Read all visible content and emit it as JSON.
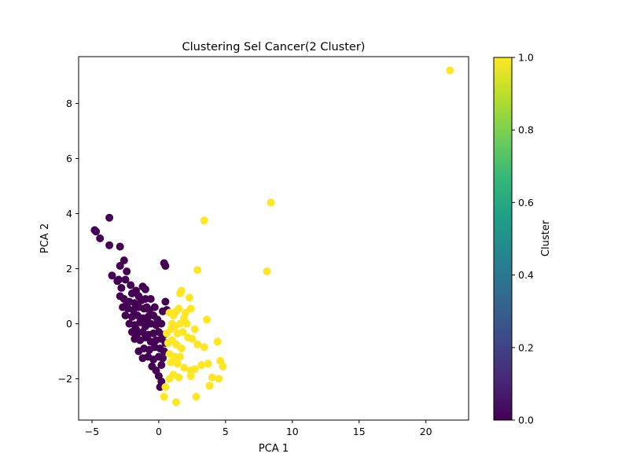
{
  "chart_data": {
    "type": "scatter",
    "title": "Clustering Sel Cancer(2 Cluster)",
    "xlabel": "PCA 1",
    "ylabel": "PCA 2",
    "xlim": [
      -6.0,
      23.2
    ],
    "ylim": [
      -3.5,
      9.7
    ],
    "xticks": [
      -5,
      0,
      5,
      10,
      15,
      20
    ],
    "yticks": [
      -2,
      0,
      2,
      4,
      6,
      8
    ],
    "grid": false,
    "colormap": "viridis",
    "colorbar": {
      "label": "Cluster",
      "range": [
        0.0,
        1.0
      ],
      "ticks": [
        "0.0",
        "0.2",
        "0.4",
        "0.6",
        "0.8",
        "1.0"
      ],
      "tick_values": [
        0.0,
        0.2,
        0.4,
        0.6,
        0.8,
        1.0
      ]
    },
    "cluster_colors": {
      "0": "#440154",
      "1": "#fde725"
    },
    "colorbar_stops": [
      "#440154",
      "#482878",
      "#3e4989",
      "#31688e",
      "#26828e",
      "#1f9e89",
      "#35b779",
      "#6ece58",
      "#b5de2b",
      "#fde725"
    ],
    "points": [
      [
        -4.8,
        3.4,
        0
      ],
      [
        -4.7,
        3.35,
        0
      ],
      [
        -4.4,
        3.1,
        0
      ],
      [
        -3.7,
        3.85,
        0
      ],
      [
        -3.7,
        2.85,
        0
      ],
      [
        -2.9,
        2.8,
        0
      ],
      [
        -2.9,
        2.1,
        0
      ],
      [
        -2.6,
        2.3,
        0
      ],
      [
        -2.4,
        1.9,
        0
      ],
      [
        -3.5,
        1.75,
        0
      ],
      [
        -3.0,
        1.6,
        0
      ],
      [
        -2.5,
        1.6,
        0
      ],
      [
        -2.1,
        1.4,
        0
      ],
      [
        -2.8,
        1.3,
        0
      ],
      [
        -3.1,
        1.55,
        0
      ],
      [
        -2.0,
        1.1,
        0
      ],
      [
        -1.7,
        1.2,
        0
      ],
      [
        -1.2,
        1.35,
        0
      ],
      [
        -1.0,
        1.25,
        0
      ],
      [
        -1.5,
        1.0,
        0
      ],
      [
        -2.9,
        1.0,
        0
      ],
      [
        -2.6,
        0.9,
        0
      ],
      [
        -2.2,
        0.8,
        0
      ],
      [
        -1.8,
        0.75,
        0
      ],
      [
        -1.3,
        0.85,
        0
      ],
      [
        -1.0,
        0.9,
        0
      ],
      [
        -0.6,
        0.9,
        0
      ],
      [
        -2.7,
        0.6,
        0
      ],
      [
        -2.3,
        0.55,
        0
      ],
      [
        -1.9,
        0.5,
        0
      ],
      [
        -1.5,
        0.6,
        0
      ],
      [
        -1.1,
        0.55,
        0
      ],
      [
        -0.7,
        0.5,
        0
      ],
      [
        -0.3,
        0.6,
        0
      ],
      [
        -2.5,
        0.3,
        0
      ],
      [
        -2.0,
        0.25,
        0
      ],
      [
        -1.6,
        0.3,
        0
      ],
      [
        -1.2,
        0.2,
        0
      ],
      [
        -0.8,
        0.25,
        0
      ],
      [
        -0.4,
        0.3,
        0
      ],
      [
        -0.1,
        0.15,
        0
      ],
      [
        -2.2,
        0.0,
        0
      ],
      [
        -1.8,
        -0.05,
        0
      ],
      [
        -1.4,
        0.05,
        0
      ],
      [
        -1.0,
        -0.1,
        0
      ],
      [
        -0.6,
        0.0,
        0
      ],
      [
        -0.2,
        -0.05,
        0
      ],
      [
        0.2,
        0.0,
        0
      ],
      [
        -2.0,
        -0.3,
        0
      ],
      [
        -1.6,
        -0.35,
        0
      ],
      [
        -1.2,
        -0.3,
        0
      ],
      [
        -0.8,
        -0.4,
        0
      ],
      [
        -0.4,
        -0.35,
        0
      ],
      [
        0.0,
        -0.3,
        0
      ],
      [
        0.4,
        -0.4,
        0
      ],
      [
        -1.8,
        -0.55,
        0
      ],
      [
        -1.4,
        -0.6,
        0
      ],
      [
        -1.0,
        -0.5,
        0
      ],
      [
        -0.6,
        -0.65,
        0
      ],
      [
        -0.2,
        -0.6,
        0
      ],
      [
        0.2,
        -0.55,
        0
      ],
      [
        0.5,
        -0.7,
        0
      ],
      [
        -1.5,
        -1.0,
        0
      ],
      [
        -1.1,
        -0.9,
        0
      ],
      [
        -0.7,
        -0.95,
        0
      ],
      [
        -0.3,
        -0.85,
        0
      ],
      [
        0.1,
        -0.9,
        0
      ],
      [
        0.4,
        -1.0,
        0
      ],
      [
        -1.2,
        -1.25,
        0
      ],
      [
        -0.8,
        -1.2,
        0
      ],
      [
        -0.4,
        -1.3,
        0
      ],
      [
        0.0,
        -1.2,
        0
      ],
      [
        0.3,
        -1.25,
        0
      ],
      [
        -0.5,
        -1.55,
        0
      ],
      [
        -0.2,
        -1.7,
        0
      ],
      [
        0.2,
        -1.5,
        0
      ],
      [
        0.0,
        -1.9,
        0
      ],
      [
        0.2,
        -2.1,
        0
      ],
      [
        0.1,
        -2.3,
        0
      ],
      [
        0.4,
        2.2,
        0
      ],
      [
        0.5,
        2.1,
        0
      ],
      [
        0.5,
        0.8,
        0
      ],
      [
        0.6,
        0.5,
        0
      ],
      [
        0.3,
        0.45,
        0
      ],
      [
        -0.9,
        0.1,
        0
      ],
      [
        -2.4,
        0.7,
        0
      ],
      [
        -1.7,
        -0.2,
        0
      ],
      [
        -0.9,
        0.6,
        0
      ],
      [
        21.8,
        9.2,
        1
      ],
      [
        8.4,
        4.4,
        1
      ],
      [
        3.4,
        3.75,
        1
      ],
      [
        8.1,
        1.9,
        1
      ],
      [
        2.9,
        1.95,
        1
      ],
      [
        1.6,
        1.1,
        1
      ],
      [
        1.7,
        1.2,
        1
      ],
      [
        2.3,
        0.95,
        1
      ],
      [
        0.8,
        0.4,
        1
      ],
      [
        1.1,
        0.3,
        1
      ],
      [
        1.3,
        0.45,
        1
      ],
      [
        1.5,
        0.55,
        1
      ],
      [
        2.0,
        0.4,
        1
      ],
      [
        2.4,
        0.55,
        1
      ],
      [
        1.9,
        0.2,
        1
      ],
      [
        2.1,
        0.0,
        1
      ],
      [
        1.6,
        0.0,
        1
      ],
      [
        1.2,
        -0.1,
        1
      ],
      [
        0.9,
        -0.2,
        1
      ],
      [
        3.6,
        0.15,
        1
      ],
      [
        1.4,
        -0.35,
        1
      ],
      [
        1.8,
        -0.3,
        1
      ],
      [
        2.2,
        -0.5,
        1
      ],
      [
        2.5,
        -0.55,
        1
      ],
      [
        1.0,
        -0.6,
        1
      ],
      [
        0.7,
        -0.7,
        1
      ],
      [
        1.3,
        -0.75,
        1
      ],
      [
        1.7,
        -0.9,
        1
      ],
      [
        2.9,
        -0.75,
        1
      ],
      [
        3.4,
        -0.85,
        1
      ],
      [
        4.4,
        -0.65,
        1
      ],
      [
        0.8,
        -1.1,
        1
      ],
      [
        1.2,
        -1.2,
        1
      ],
      [
        1.6,
        -1.2,
        1
      ],
      [
        0.9,
        -1.4,
        1
      ],
      [
        1.4,
        -1.45,
        1
      ],
      [
        1.9,
        -1.6,
        1
      ],
      [
        2.4,
        -1.7,
        1
      ],
      [
        2.7,
        -1.65,
        1
      ],
      [
        3.2,
        -1.5,
        1
      ],
      [
        3.7,
        -1.45,
        1
      ],
      [
        4.6,
        -1.35,
        1
      ],
      [
        4.8,
        -1.55,
        1
      ],
      [
        1.1,
        -1.85,
        1
      ],
      [
        0.8,
        -2.0,
        1
      ],
      [
        1.5,
        -1.95,
        1
      ],
      [
        2.4,
        -1.9,
        1
      ],
      [
        4.0,
        -1.95,
        1
      ],
      [
        4.5,
        -2.0,
        1
      ],
      [
        0.5,
        -2.3,
        1
      ],
      [
        3.8,
        -2.25,
        1
      ],
      [
        0.4,
        -2.65,
        1
      ],
      [
        2.8,
        -2.65,
        1
      ],
      [
        1.3,
        -2.85,
        1
      ],
      [
        0.6,
        -0.35,
        1
      ],
      [
        1.0,
        0.0,
        1
      ],
      [
        2.7,
        -0.2,
        1
      ]
    ]
  }
}
